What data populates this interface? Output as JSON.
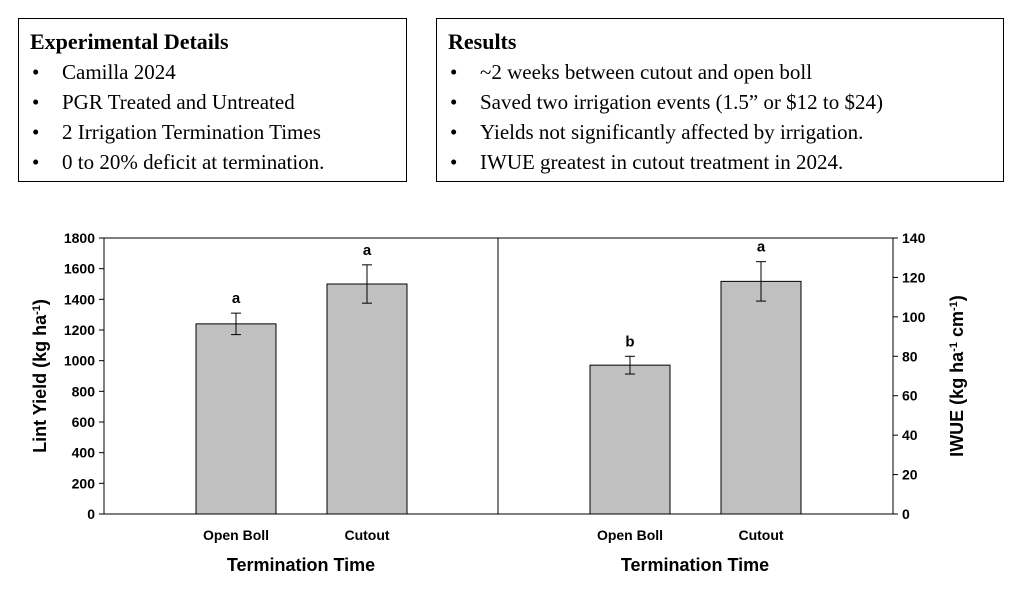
{
  "details": {
    "title": "Experimental Details",
    "items": [
      "Camilla 2024",
      "PGR Treated and Untreated",
      "2 Irrigation Termination Times",
      "0 to 20% deficit at termination."
    ]
  },
  "results": {
    "title": "Results",
    "items": [
      "~2 weeks between cutout and open boll",
      "Saved two irrigation events (1.5” or $12 to $24)",
      "Yields not significantly affected by irrigation.",
      "IWUE greatest in cutout treatment in 2024."
    ]
  },
  "bullet_char": "•",
  "colors": {
    "bar_fill": "#c0c0c0",
    "bar_stroke": "#000000"
  },
  "chart_data": [
    {
      "type": "bar",
      "categories": [
        "Open Boll",
        "Cutout"
      ],
      "values": [
        1240,
        1500
      ],
      "error": [
        70,
        125
      ],
      "letters": [
        "a",
        "a"
      ],
      "xlabel": "Termination Time",
      "ylabel": "Lint Yield (kg ha",
      "ylabel_sup": "-1",
      "ylabel_end": ")",
      "ylim": [
        0,
        1800
      ],
      "yticks": [
        0,
        200,
        400,
        600,
        800,
        1000,
        1200,
        1400,
        1600,
        1800
      ],
      "yaxis_side": "left",
      "grid": false
    },
    {
      "type": "bar",
      "categories": [
        "Open Boll",
        "Cutout"
      ],
      "values": [
        75.5,
        118
      ],
      "error": [
        4.5,
        10
      ],
      "letters": [
        "b",
        "a"
      ],
      "xlabel": "Termination Time",
      "ylabel": "IWUE (kg ha",
      "ylabel_sup": "-1",
      "ylabel_mid": " cm",
      "ylabel_sup2": "-1",
      "ylabel_end": ")",
      "ylim": [
        0,
        140
      ],
      "yticks": [
        0,
        20,
        40,
        60,
        80,
        100,
        120,
        140
      ],
      "yaxis_side": "right",
      "grid": false
    }
  ]
}
